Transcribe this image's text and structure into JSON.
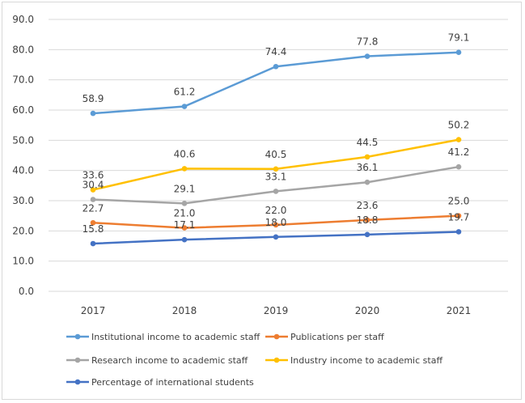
{
  "chart_data": {
    "type": "line",
    "title": "",
    "xlabel": "",
    "ylabel": "",
    "categories": [
      "2017",
      "2018",
      "2019",
      "2020",
      "2021"
    ],
    "ylim": [
      0,
      90
    ],
    "yticks": [
      "0.0",
      "10.0",
      "20.0",
      "30.0",
      "40.0",
      "50.0",
      "60.0",
      "70.0",
      "80.0",
      "90.0"
    ],
    "grid": "horizontal",
    "legend_position": "bottom",
    "series": [
      {
        "name": "Institutional income to academic staff",
        "color": "#5b9bd5",
        "values": [
          58.9,
          61.2,
          74.4,
          77.8,
          79.1
        ],
        "labels": [
          "58.9",
          "61.2",
          "74.4",
          "77.8",
          "79.1"
        ]
      },
      {
        "name": "Publications per staff",
        "color": "#ed7d31",
        "values": [
          22.7,
          21.0,
          22.0,
          23.6,
          25.0
        ],
        "labels": [
          "22.7",
          "21.0",
          "22.0",
          "23.6",
          "25.0"
        ]
      },
      {
        "name": "Research income to academic staff",
        "color": "#a5a5a5",
        "values": [
          30.4,
          29.1,
          33.1,
          36.1,
          41.2
        ],
        "labels": [
          "30.4",
          "29.1",
          "33.1",
          "36.1",
          "41.2"
        ]
      },
      {
        "name": "Industry income to academic staff",
        "color": "#ffc000",
        "values": [
          33.6,
          40.6,
          40.5,
          44.5,
          50.2
        ],
        "labels": [
          "33.6",
          "40.6",
          "40.5",
          "44.5",
          "50.2"
        ]
      },
      {
        "name": "Percentage of international students",
        "color": "#4472c4",
        "values": [
          15.8,
          17.1,
          18.0,
          18.8,
          19.7
        ],
        "labels": [
          "15.8",
          "17.1",
          "18.0",
          "18.8",
          "19.7"
        ]
      }
    ]
  }
}
